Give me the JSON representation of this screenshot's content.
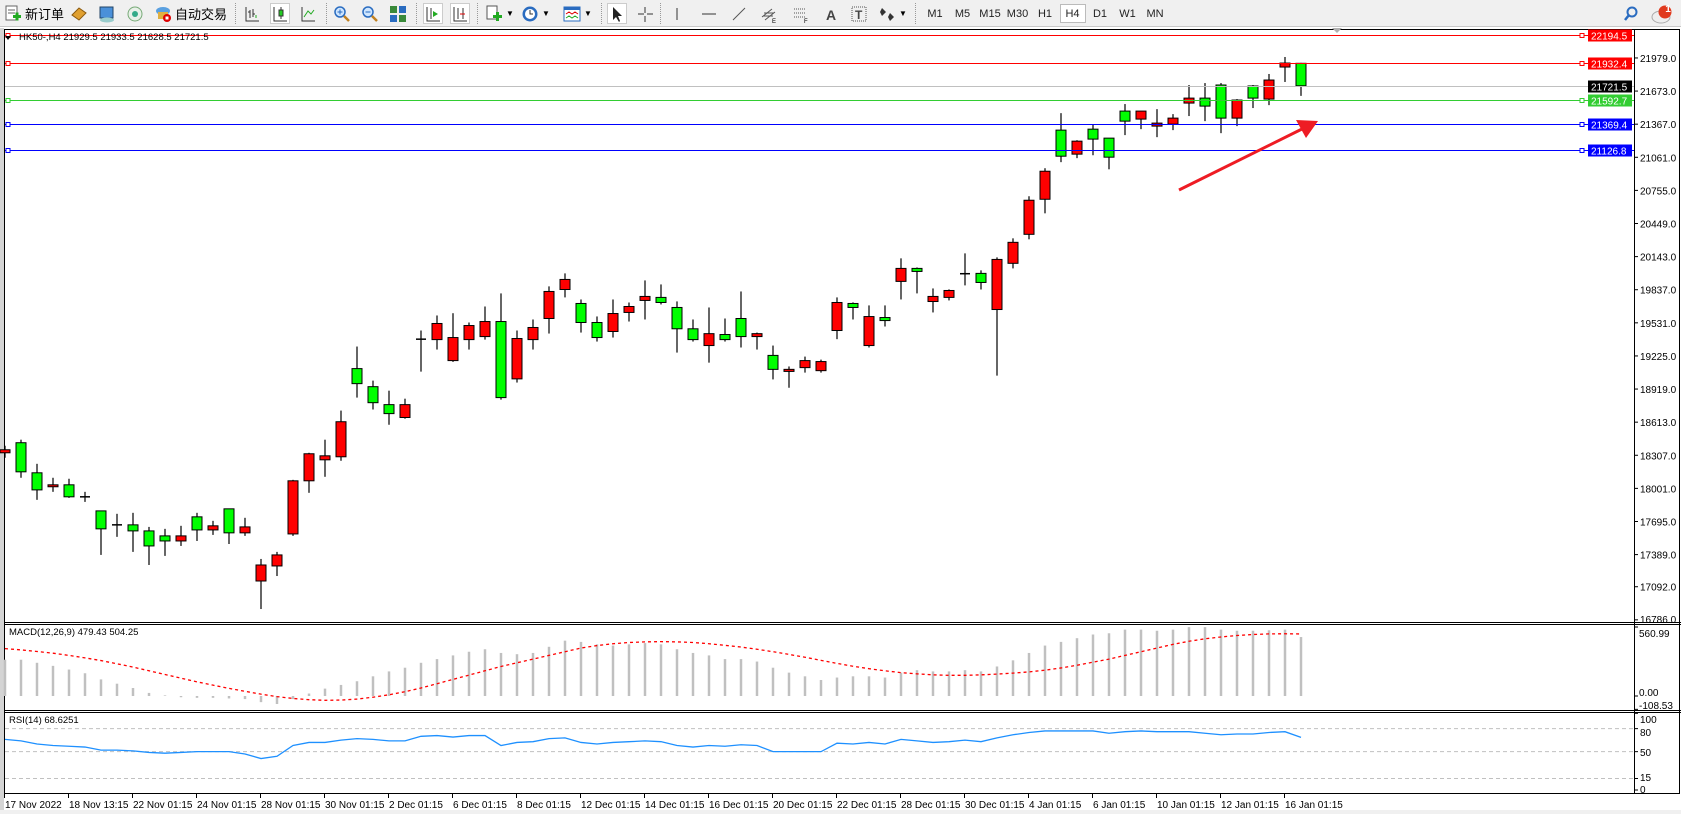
{
  "toolbar": {
    "new_order_label": "新订单",
    "auto_trading_label": "自动交易",
    "timeframes": [
      "M1",
      "M5",
      "M15",
      "M30",
      "H1",
      "H4",
      "D1",
      "W1",
      "MN"
    ],
    "active_timeframe": "H4",
    "notification_count": "1",
    "icons": [
      "new-order-icon",
      "market-watch-icon",
      "data-window-icon",
      "navigator-icon",
      "auto-trading-icon",
      "bar-chart-icon",
      "candlestick-icon",
      "line-chart-icon",
      "zoom-in-icon",
      "zoom-out-icon",
      "tile-windows-icon",
      "auto-scroll-icon",
      "chart-shift-icon",
      "indicators-icon",
      "periods-icon",
      "templates-icon",
      "cursor-icon",
      "crosshair-icon",
      "vertical-line-icon",
      "horizontal-line-icon",
      "trendline-icon",
      "equidistant-channel-icon",
      "fibonacci-icon",
      "text-icon",
      "text-label-icon",
      "arrows-icon",
      "search-icon",
      "notification-icon"
    ]
  },
  "chart": {
    "header": "HK50-,H4  21929.5 21933.5 21628.5 21721.5",
    "price_ticks": [
      "21979.0",
      "21673.0",
      "21367.0",
      "21061.0",
      "20755.0",
      "20449.0",
      "20143.0",
      "19837.0",
      "19531.0",
      "19225.0",
      "18919.0",
      "18613.0",
      "18307.0",
      "18001.0",
      "17695.0",
      "17389.0",
      "17092.0",
      "16786.0"
    ],
    "hlines": [
      {
        "price": "22194.5",
        "color": "#ff0000"
      },
      {
        "price": "21932.4",
        "color": "#ff0000"
      },
      {
        "price": "21721.5",
        "color": "#c0c0c0",
        "label_bg": "#000000"
      },
      {
        "price": "21592.7",
        "color": "#32cd32"
      },
      {
        "price": "21369.4",
        "color": "#0000ff"
      },
      {
        "price": "21126.8",
        "color": "#0000ff"
      }
    ],
    "colors": {
      "bull": "#ff0000",
      "bear": "#00ff00",
      "wick": "#000000",
      "arrow": "#ee1c24"
    },
    "time_labels": [
      "17 Nov 2022",
      "18 Nov 13:15",
      "22 Nov 01:15",
      "24 Nov 01:15",
      "28 Nov 01:15",
      "30 Nov 01:15",
      "2 Dec 01:15",
      "6 Dec 01:15",
      "8 Dec 01:15",
      "12 Dec 01:15",
      "14 Dec 01:15",
      "16 Dec 01:15",
      "20 Dec 01:15",
      "22 Dec 01:15",
      "28 Dec 01:15",
      "30 Dec 01:15",
      "4 Jan 01:15",
      "6 Jan 01:15",
      "10 Jan 01:15",
      "12 Jan 01:15",
      "16 Jan 01:15"
    ]
  },
  "chart_data": {
    "type": "candlestick",
    "symbol": "HK50-",
    "timeframe": "H4",
    "ylim": [
      16786.0,
      22194.5
    ],
    "ohlc": [
      [
        18330,
        18395,
        18284,
        18358
      ],
      [
        18423,
        18451,
        18099,
        18154
      ],
      [
        18145,
        18228,
        17895,
        17987
      ],
      [
        18016,
        18099,
        17969,
        18034
      ],
      [
        18034,
        18090,
        17913,
        17923
      ],
      [
        17923,
        17969,
        17876,
        17923
      ],
      [
        17793,
        17793,
        17386,
        17627
      ],
      [
        17664,
        17766,
        17553,
        17664
      ],
      [
        17664,
        17775,
        17414,
        17608
      ],
      [
        17608,
        17645,
        17293,
        17469
      ],
      [
        17562,
        17627,
        17377,
        17515
      ],
      [
        17515,
        17655,
        17469,
        17562
      ],
      [
        17738,
        17775,
        17515,
        17617
      ],
      [
        17617,
        17701,
        17571,
        17655
      ],
      [
        17812,
        17812,
        17487,
        17590
      ],
      [
        17590,
        17729,
        17562,
        17645
      ],
      [
        17145,
        17349,
        16886,
        17293
      ],
      [
        17284,
        17414,
        17191,
        17386
      ],
      [
        17580,
        18080,
        17562,
        18071
      ],
      [
        18071,
        18330,
        17960,
        18321
      ],
      [
        18265,
        18451,
        18108,
        18302
      ],
      [
        18293,
        18720,
        18256,
        18617
      ],
      [
        19108,
        19312,
        18840,
        18969
      ],
      [
        18941,
        18997,
        18730,
        18793
      ],
      [
        18775,
        18904,
        18589,
        18692
      ],
      [
        18656,
        18830,
        18645,
        18775
      ],
      [
        19370,
        19460,
        19080,
        19380
      ],
      [
        19376,
        19599,
        19284,
        19525
      ],
      [
        19182,
        19620,
        19170,
        19395
      ],
      [
        19376,
        19534,
        19284,
        19506
      ],
      [
        19404,
        19682,
        19376,
        19543
      ],
      [
        19543,
        19803,
        18821,
        18840
      ],
      [
        19013,
        19460,
        18979,
        19386
      ],
      [
        19376,
        19562,
        19284,
        19488
      ],
      [
        19571,
        19868,
        19432,
        19821
      ],
      [
        19839,
        19988,
        19766,
        19932
      ],
      [
        19710,
        19747,
        19441,
        19534
      ],
      [
        19534,
        19590,
        19358,
        19395
      ],
      [
        19451,
        19747,
        19395,
        19617
      ],
      [
        19627,
        19719,
        19543,
        19682
      ],
      [
        19738,
        19923,
        19562,
        19775
      ],
      [
        19766,
        19886,
        19701,
        19719
      ],
      [
        19673,
        19729,
        19256,
        19476
      ],
      [
        19476,
        19562,
        19358,
        19376
      ],
      [
        19321,
        19673,
        19163,
        19431
      ],
      [
        19423,
        19571,
        19358,
        19376
      ],
      [
        19571,
        19821,
        19303,
        19404
      ],
      [
        19404,
        19441,
        19284,
        19431
      ],
      [
        19230,
        19321,
        19008,
        19101
      ],
      [
        19082,
        19128,
        18931,
        19101
      ],
      [
        19117,
        19219,
        19071,
        19182
      ],
      [
        19089,
        19191,
        19071,
        19173
      ],
      [
        19460,
        19766,
        19380,
        19719
      ],
      [
        19710,
        19720,
        19562,
        19673
      ],
      [
        19321,
        19692,
        19303,
        19589
      ],
      [
        19580,
        19692,
        19497,
        19552
      ],
      [
        19914,
        20127,
        19747,
        20034
      ],
      [
        20034,
        20043,
        19803,
        20006
      ],
      [
        19728,
        19849,
        19627,
        19775
      ],
      [
        19766,
        19840,
        19738,
        19830
      ],
      [
        19979,
        20173,
        19877,
        19985
      ],
      [
        19988,
        20016,
        19839,
        19904
      ],
      [
        19654,
        20136,
        19043,
        20117
      ],
      [
        20081,
        20312,
        20034,
        20275
      ],
      [
        20349,
        20701,
        20303,
        20664
      ],
      [
        20673,
        20960,
        20543,
        20932
      ],
      [
        21312,
        21469,
        21016,
        21071
      ],
      [
        21090,
        21219,
        21053,
        21210
      ],
      [
        21321,
        21367,
        21080,
        21229
      ],
      [
        21238,
        21238,
        20950,
        21062
      ],
      [
        21488,
        21553,
        21266,
        21395
      ],
      [
        21414,
        21488,
        21321,
        21488
      ],
      [
        21349,
        21506,
        21247,
        21377
      ],
      [
        21367,
        21460,
        21312,
        21423
      ],
      [
        21562,
        21729,
        21442,
        21608
      ],
      [
        21608,
        21747,
        21395,
        21534
      ],
      [
        21729,
        21747,
        21284,
        21423
      ],
      [
        21423,
        21599,
        21349,
        21590
      ],
      [
        21720,
        21729,
        21516,
        21608
      ],
      [
        21599,
        21831,
        21543,
        21775
      ],
      [
        21895,
        21988,
        21757,
        21932
      ],
      [
        21929.5,
        21933.5,
        21628.5,
        21721.5
      ]
    ],
    "macd": {
      "label": "MACD(12,26,9) 479.43 504.25",
      "ticks": [
        "560.99",
        "0.00",
        "-108.53"
      ],
      "ylim": [
        -108.53,
        560.99
      ],
      "main": [
        295,
        295,
        270,
        245,
        215,
        185,
        135,
        100,
        65,
        25,
        5,
        -10,
        -15,
        -15,
        -20,
        -25,
        -50,
        -65,
        -25,
        20,
        60,
        90,
        120,
        160,
        200,
        230,
        270,
        300,
        330,
        360,
        380,
        350,
        340,
        350,
        400,
        450,
        440,
        420,
        410,
        420,
        430,
        420,
        380,
        350,
        330,
        300,
        300,
        280,
        230,
        190,
        160,
        130,
        150,
        160,
        160,
        150,
        190,
        210,
        200,
        200,
        210,
        200,
        240,
        290,
        350,
        410,
        440,
        470,
        500,
        510,
        540,
        540,
        530,
        540,
        560,
        560,
        540,
        530,
        530,
        535,
        540,
        479.43
      ],
      "signal": [
        385,
        375,
        362,
        348,
        330,
        310,
        288,
        262,
        235,
        205,
        175,
        145,
        115,
        88,
        62,
        38,
        15,
        -5,
        -20,
        -30,
        -35,
        -33,
        -25,
        -10,
        10,
        35,
        65,
        100,
        135,
        170,
        205,
        240,
        270,
        300,
        330,
        360,
        390,
        410,
        425,
        435,
        440,
        442,
        440,
        435,
        425,
        412,
        398,
        380,
        360,
        338,
        315,
        290,
        265,
        242,
        222,
        205,
        190,
        180,
        172,
        168,
        168,
        172,
        178,
        186,
        196,
        210,
        228,
        250,
        275,
        300,
        330,
        360,
        390,
        420,
        445,
        465,
        480,
        492,
        500,
        505,
        506,
        504.25
      ]
    },
    "rsi": {
      "label": "RSI(14) 68.6251",
      "ticks": [
        "100",
        "80",
        "50",
        "15",
        "0"
      ],
      "levels": [
        80,
        50,
        15
      ],
      "ylim": [
        0,
        100
      ],
      "values": [
        66,
        64,
        60,
        58,
        57,
        56,
        52,
        52,
        51,
        49,
        48,
        49,
        50,
        50,
        50,
        47,
        41,
        44,
        58,
        62,
        62,
        65,
        67,
        66,
        64,
        64,
        70,
        71,
        69,
        71,
        71,
        58,
        62,
        63,
        67,
        68,
        62,
        60,
        62,
        63,
        64,
        63,
        58,
        56,
        58,
        57,
        59,
        58,
        50,
        50,
        50,
        50,
        61,
        60,
        62,
        60,
        66,
        64,
        62,
        63,
        65,
        63,
        68,
        72,
        75,
        77,
        77,
        77,
        77,
        74,
        76,
        77,
        76,
        76,
        76,
        74,
        72,
        73,
        73,
        75,
        76,
        68.6251
      ]
    }
  }
}
